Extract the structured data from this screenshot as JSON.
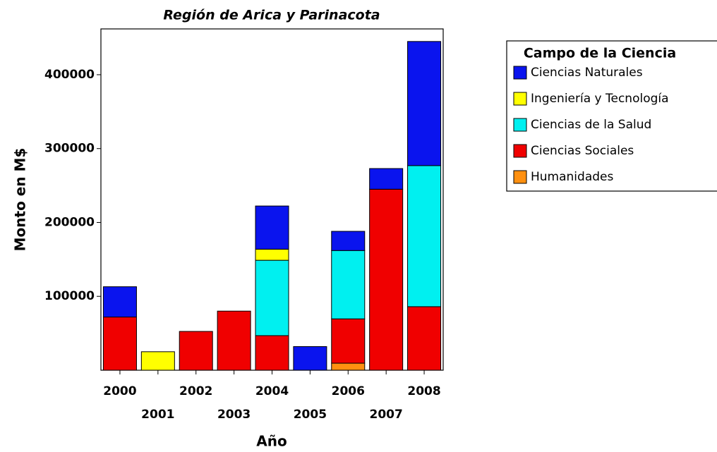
{
  "chart_data": {
    "type": "stacked_bar",
    "title": "Región de Arica y Parinacota",
    "x_label": "Año",
    "y_label": "Monto en M$",
    "categories": [
      "2000",
      "2001",
      "2002",
      "2003",
      "2004",
      "2005",
      "2006",
      "2007",
      "2008"
    ],
    "series": [
      {
        "name": "Ciencias Naturales",
        "color": "#0a14ee",
        "values": [
          41000,
          null,
          null,
          null,
          58500,
          32000,
          26000,
          28000,
          168000
        ]
      },
      {
        "name": "Ingeniería y Tecnología",
        "color": "#ffff00",
        "values": [
          null,
          25000,
          null,
          null,
          15000,
          null,
          null,
          null,
          null
        ]
      },
      {
        "name": "Ciencias de la Salud",
        "color": "#00f0f0",
        "values": [
          null,
          null,
          null,
          null,
          102000,
          null,
          92500,
          null,
          191000
        ]
      },
      {
        "name": "Ciencias Sociales",
        "color": "#f00000",
        "values": [
          72000,
          null,
          52500,
          80000,
          46800,
          null,
          60000,
          245000,
          86000
        ]
      },
      {
        "name": "Humanidades",
        "color": "#ff9010",
        "values": [
          null,
          null,
          null,
          null,
          null,
          null,
          9500,
          null,
          null
        ]
      }
    ],
    "legend_title": "Campo de la Ciencia",
    "ylim": [
      0,
      462000
    ],
    "yticks": [
      100000,
      200000,
      300000,
      400000
    ]
  }
}
